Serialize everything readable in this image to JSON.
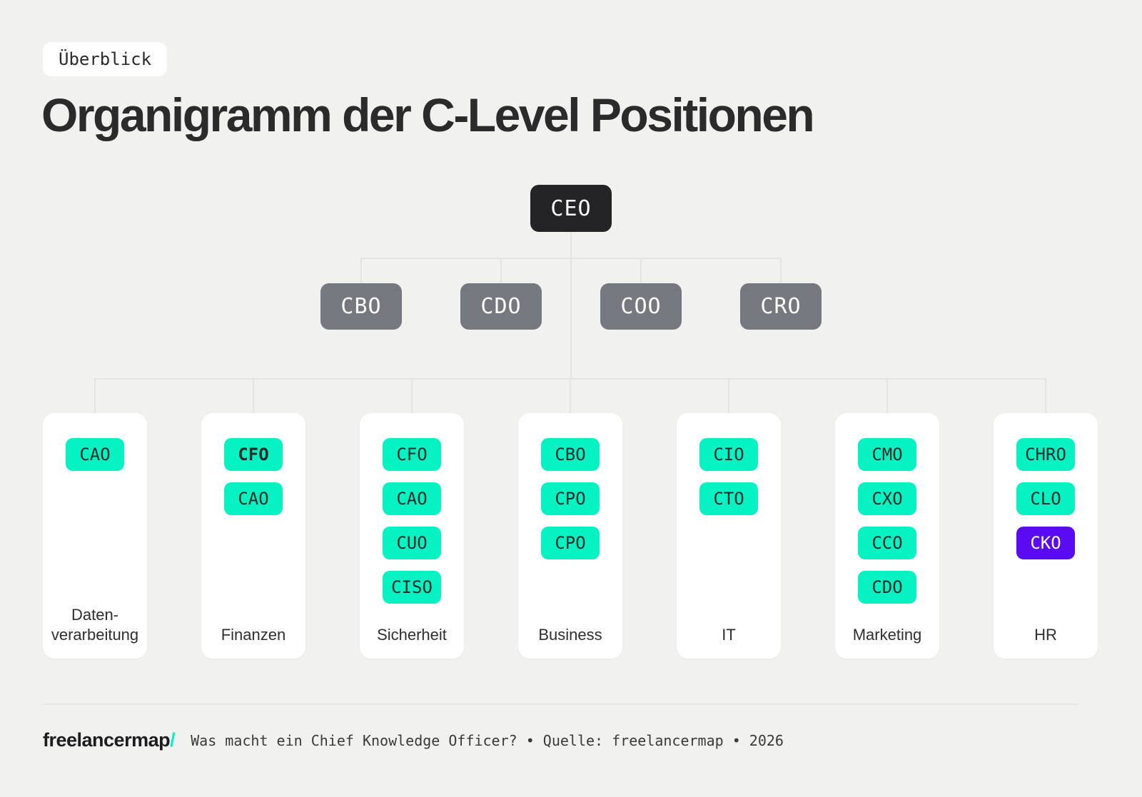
{
  "badge": {
    "label": "Überblick"
  },
  "title": "Organigramm der C-Level Positionen",
  "colors": {
    "accent_mint": "#07f2c3",
    "accent_purple": "#5a0bf2",
    "node_dark": "#242427",
    "node_gray": "#75787e",
    "background": "#f1f1ef"
  },
  "org_chart": {
    "root": {
      "label": "CEO"
    },
    "executives": [
      {
        "label": "CBO"
      },
      {
        "label": "CDO"
      },
      {
        "label": "COO"
      },
      {
        "label": "CRO"
      }
    ],
    "departments": [
      {
        "name": "Daten-\nverarbeitung",
        "roles": [
          {
            "label": "CAO",
            "style": "default"
          }
        ]
      },
      {
        "name": "Finanzen",
        "roles": [
          {
            "label": "CFO",
            "style": "bold"
          },
          {
            "label": "CAO",
            "style": "default"
          }
        ]
      },
      {
        "name": "Sicherheit",
        "roles": [
          {
            "label": "CFO",
            "style": "default"
          },
          {
            "label": "CAO",
            "style": "default"
          },
          {
            "label": "CUO",
            "style": "default"
          },
          {
            "label": "CISO",
            "style": "default"
          }
        ]
      },
      {
        "name": "Business",
        "roles": [
          {
            "label": "CBO",
            "style": "default"
          },
          {
            "label": "CPO",
            "style": "default"
          },
          {
            "label": "CPO",
            "style": "default"
          }
        ]
      },
      {
        "name": "IT",
        "roles": [
          {
            "label": "CIO",
            "style": "default"
          },
          {
            "label": "CTO",
            "style": "default"
          }
        ]
      },
      {
        "name": "Marketing",
        "roles": [
          {
            "label": "CMO",
            "style": "default"
          },
          {
            "label": "CXO",
            "style": "default"
          },
          {
            "label": "CCO",
            "style": "default"
          },
          {
            "label": "CDO",
            "style": "default"
          }
        ]
      },
      {
        "name": "HR",
        "roles": [
          {
            "label": "CHRO",
            "style": "default"
          },
          {
            "label": "CLO",
            "style": "default"
          },
          {
            "label": "CKO",
            "style": "highlight"
          }
        ]
      }
    ]
  },
  "footer": {
    "brand": "freelancermap",
    "brand_slash": "/",
    "caption": "Was macht ein Chief Knowledge Officer? • Quelle: freelancermap • 2026"
  }
}
